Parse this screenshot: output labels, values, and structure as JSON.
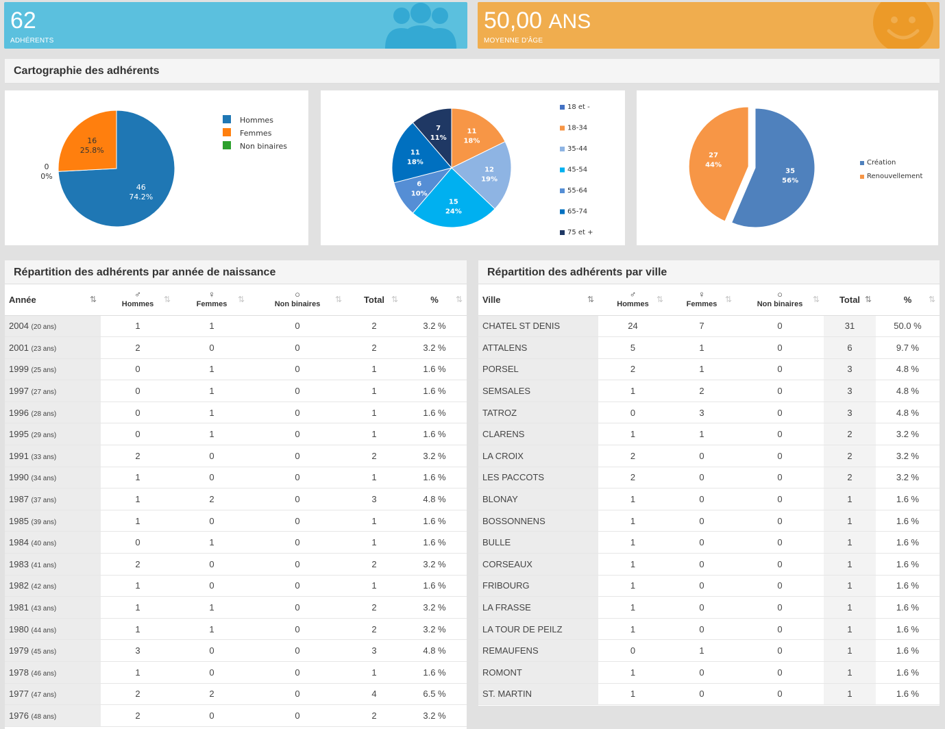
{
  "tiles": {
    "members": {
      "value": "62",
      "label": "ADHÉRENTS"
    },
    "age": {
      "value": "50,00",
      "unit": "ANS",
      "label": "MOYENNE D'ÂGE"
    }
  },
  "colors": {
    "blue": "#5bc0de",
    "orange": "#f0ad4e"
  },
  "section_title": "Cartographie des adhérents",
  "chart_data": [
    {
      "type": "pie",
      "categories": [
        "Hommes",
        "Femmes",
        "Non binaires"
      ],
      "values": [
        46,
        16,
        0
      ],
      "labels": [
        "46\n74.2%",
        "16\n25.8%",
        "0\n0%"
      ],
      "colors": [
        "#1f77b4",
        "#ff7f0e",
        "#2ca02c"
      ],
      "legend": "right"
    },
    {
      "type": "pie",
      "categories": [
        "18 et -",
        "18-34",
        "35-44",
        "45-54",
        "55-64",
        "65-74",
        "75 et +"
      ],
      "values": [
        0,
        11,
        12,
        15,
        6,
        11,
        7
      ],
      "labels": [
        "",
        "11\n18%",
        "12\n19%",
        "15\n24%",
        "6\n10%",
        "11\n18%",
        "7\n11%"
      ],
      "colors": [
        "#4472c4",
        "#f79646",
        "#8eb4e3",
        "#00b0f0",
        "#558ed5",
        "#0070c0",
        "#1f3864"
      ],
      "legend": "right"
    },
    {
      "type": "pie",
      "categories": [
        "Création",
        "Renouvellement"
      ],
      "values": [
        35,
        27
      ],
      "labels": [
        "35\n56%",
        "27\n44%"
      ],
      "colors": [
        "#4f81bd",
        "#f79646"
      ],
      "legend": "right"
    }
  ],
  "year_table": {
    "title": "Répartition des adhérents par année de naissance",
    "headers": {
      "year": "Année",
      "men": "Hommes",
      "women": "Femmes",
      "nb": "Non binaires",
      "total": "Total",
      "pct": "%"
    },
    "rows": [
      {
        "year": "2004",
        "age": "(20 ans)",
        "men": "1",
        "women": "1",
        "nb": "0",
        "total": "2",
        "pct": "3.2 %"
      },
      {
        "year": "2001",
        "age": "(23 ans)",
        "men": "2",
        "women": "0",
        "nb": "0",
        "total": "2",
        "pct": "3.2 %"
      },
      {
        "year": "1999",
        "age": "(25 ans)",
        "men": "0",
        "women": "1",
        "nb": "0",
        "total": "1",
        "pct": "1.6 %"
      },
      {
        "year": "1997",
        "age": "(27 ans)",
        "men": "0",
        "women": "1",
        "nb": "0",
        "total": "1",
        "pct": "1.6 %"
      },
      {
        "year": "1996",
        "age": "(28 ans)",
        "men": "0",
        "women": "1",
        "nb": "0",
        "total": "1",
        "pct": "1.6 %"
      },
      {
        "year": "1995",
        "age": "(29 ans)",
        "men": "0",
        "women": "1",
        "nb": "0",
        "total": "1",
        "pct": "1.6 %"
      },
      {
        "year": "1991",
        "age": "(33 ans)",
        "men": "2",
        "women": "0",
        "nb": "0",
        "total": "2",
        "pct": "3.2 %"
      },
      {
        "year": "1990",
        "age": "(34 ans)",
        "men": "1",
        "women": "0",
        "nb": "0",
        "total": "1",
        "pct": "1.6 %"
      },
      {
        "year": "1987",
        "age": "(37 ans)",
        "men": "1",
        "women": "2",
        "nb": "0",
        "total": "3",
        "pct": "4.8 %"
      },
      {
        "year": "1985",
        "age": "(39 ans)",
        "men": "1",
        "women": "0",
        "nb": "0",
        "total": "1",
        "pct": "1.6 %"
      },
      {
        "year": "1984",
        "age": "(40 ans)",
        "men": "0",
        "women": "1",
        "nb": "0",
        "total": "1",
        "pct": "1.6 %"
      },
      {
        "year": "1983",
        "age": "(41 ans)",
        "men": "2",
        "women": "0",
        "nb": "0",
        "total": "2",
        "pct": "3.2 %"
      },
      {
        "year": "1982",
        "age": "(42 ans)",
        "men": "1",
        "women": "0",
        "nb": "0",
        "total": "1",
        "pct": "1.6 %"
      },
      {
        "year": "1981",
        "age": "(43 ans)",
        "men": "1",
        "women": "1",
        "nb": "0",
        "total": "2",
        "pct": "3.2 %"
      },
      {
        "year": "1980",
        "age": "(44 ans)",
        "men": "1",
        "women": "1",
        "nb": "0",
        "total": "2",
        "pct": "3.2 %"
      },
      {
        "year": "1979",
        "age": "(45 ans)",
        "men": "3",
        "women": "0",
        "nb": "0",
        "total": "3",
        "pct": "4.8 %"
      },
      {
        "year": "1978",
        "age": "(46 ans)",
        "men": "1",
        "women": "0",
        "nb": "0",
        "total": "1",
        "pct": "1.6 %"
      },
      {
        "year": "1977",
        "age": "(47 ans)",
        "men": "2",
        "women": "2",
        "nb": "0",
        "total": "4",
        "pct": "6.5 %"
      },
      {
        "year": "1976",
        "age": "(48 ans)",
        "men": "2",
        "women": "0",
        "nb": "0",
        "total": "2",
        "pct": "3.2 %"
      }
    ]
  },
  "city_table": {
    "title": "Répartition des adhérents par ville",
    "headers": {
      "city": "Ville",
      "men": "Hommes",
      "women": "Femmes",
      "nb": "Non binaires",
      "total": "Total",
      "pct": "%"
    },
    "rows": [
      {
        "city": "CHATEL ST DENIS",
        "men": "24",
        "women": "7",
        "nb": "0",
        "total": "31",
        "pct": "50.0 %"
      },
      {
        "city": "ATTALENS",
        "men": "5",
        "women": "1",
        "nb": "0",
        "total": "6",
        "pct": "9.7 %"
      },
      {
        "city": "PORSEL",
        "men": "2",
        "women": "1",
        "nb": "0",
        "total": "3",
        "pct": "4.8 %"
      },
      {
        "city": "SEMSALES",
        "men": "1",
        "women": "2",
        "nb": "0",
        "total": "3",
        "pct": "4.8 %"
      },
      {
        "city": "TATROZ",
        "men": "0",
        "women": "3",
        "nb": "0",
        "total": "3",
        "pct": "4.8 %"
      },
      {
        "city": "CLARENS",
        "men": "1",
        "women": "1",
        "nb": "0",
        "total": "2",
        "pct": "3.2 %"
      },
      {
        "city": "LA CROIX",
        "men": "2",
        "women": "0",
        "nb": "0",
        "total": "2",
        "pct": "3.2 %"
      },
      {
        "city": "LES PACCOTS",
        "men": "2",
        "women": "0",
        "nb": "0",
        "total": "2",
        "pct": "3.2 %"
      },
      {
        "city": "BLONAY",
        "men": "1",
        "women": "0",
        "nb": "0",
        "total": "1",
        "pct": "1.6 %"
      },
      {
        "city": "BOSSONNENS",
        "men": "1",
        "women": "0",
        "nb": "0",
        "total": "1",
        "pct": "1.6 %"
      },
      {
        "city": "BULLE",
        "men": "1",
        "women": "0",
        "nb": "0",
        "total": "1",
        "pct": "1.6 %"
      },
      {
        "city": "CORSEAUX",
        "men": "1",
        "women": "0",
        "nb": "0",
        "total": "1",
        "pct": "1.6 %"
      },
      {
        "city": "FRIBOURG",
        "men": "1",
        "women": "0",
        "nb": "0",
        "total": "1",
        "pct": "1.6 %"
      },
      {
        "city": "LA FRASSE",
        "men": "1",
        "women": "0",
        "nb": "0",
        "total": "1",
        "pct": "1.6 %"
      },
      {
        "city": "LA TOUR DE PEILZ",
        "men": "1",
        "women": "0",
        "nb": "0",
        "total": "1",
        "pct": "1.6 %"
      },
      {
        "city": "REMAUFENS",
        "men": "0",
        "women": "1",
        "nb": "0",
        "total": "1",
        "pct": "1.6 %"
      },
      {
        "city": "ROMONT",
        "men": "1",
        "women": "0",
        "nb": "0",
        "total": "1",
        "pct": "1.6 %"
      },
      {
        "city": "ST. MARTIN",
        "men": "1",
        "women": "0",
        "nb": "0",
        "total": "1",
        "pct": "1.6 %"
      }
    ]
  }
}
